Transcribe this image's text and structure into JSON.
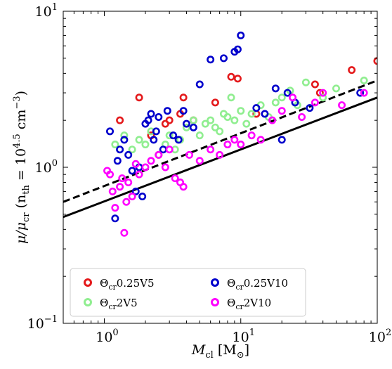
{
  "chart_data": {
    "type": "scatter",
    "title": "",
    "x_scale": "log",
    "y_scale": "log",
    "xlim": [
      0.5,
      100
    ],
    "ylim": [
      0.1,
      10
    ],
    "grid": false,
    "legend_position": "lower-left",
    "xlabel": {
      "main": "M",
      "sub": "cl",
      "tail": " [M",
      "tail_sub": "⊙",
      "close": "]"
    },
    "ylabel": {
      "text": "μ/μ",
      "sub": "cr",
      "paren": " (n",
      "sub2": "th",
      "eq": " = 10",
      "sup": "4.5",
      "unit": " cm",
      "unit_sup": "−3",
      "close": ")"
    },
    "x_ticks": [
      {
        "value": 1,
        "base": "10",
        "exp": "0"
      },
      {
        "value": 10,
        "base": "10",
        "exp": "1"
      },
      {
        "value": 100,
        "base": "10",
        "exp": "2"
      }
    ],
    "y_ticks": [
      {
        "value": 0.1,
        "base": "10",
        "exp": "−1"
      },
      {
        "value": 1,
        "base": "10",
        "exp": "0"
      },
      {
        "value": 10,
        "base": "10",
        "exp": "1"
      }
    ],
    "series": [
      {
        "name_main": "Θ",
        "name_sub": "cr",
        "name_tail": "0.25V5",
        "color": "#e41a1c",
        "points": [
          [
            1.3,
            2.0
          ],
          [
            1.8,
            2.8
          ],
          [
            2.2,
            1.6
          ],
          [
            2.5,
            1.2
          ],
          [
            2.8,
            1.9
          ],
          [
            3.0,
            2.0
          ],
          [
            3.6,
            2.2
          ],
          [
            3.8,
            2.8
          ],
          [
            4.5,
            2.0
          ],
          [
            6.5,
            2.6
          ],
          [
            8.5,
            3.8
          ],
          [
            9.5,
            3.7
          ],
          [
            13,
            2.2
          ],
          [
            35,
            3.4
          ],
          [
            38,
            3.0
          ],
          [
            65,
            4.2
          ],
          [
            100,
            4.8
          ]
        ]
      },
      {
        "name_main": "Θ",
        "name_sub": "cr",
        "name_tail": "2V5",
        "color": "#90ee90",
        "points": [
          [
            1.2,
            1.4
          ],
          [
            1.4,
            1.6
          ],
          [
            1.6,
            1.3
          ],
          [
            1.8,
            1.5
          ],
          [
            2.0,
            1.4
          ],
          [
            2.2,
            1.7
          ],
          [
            2.5,
            1.2
          ],
          [
            2.8,
            1.4
          ],
          [
            3.0,
            1.6
          ],
          [
            3.3,
            1.3
          ],
          [
            3.6,
            1.5
          ],
          [
            4.0,
            1.8
          ],
          [
            4.5,
            2.0
          ],
          [
            5.0,
            1.6
          ],
          [
            5.5,
            1.9
          ],
          [
            6.0,
            2.0
          ],
          [
            6.5,
            1.8
          ],
          [
            7.0,
            1.7
          ],
          [
            7.5,
            2.2
          ],
          [
            8.0,
            2.1
          ],
          [
            8.5,
            2.8
          ],
          [
            9.0,
            2.0
          ],
          [
            10,
            2.3
          ],
          [
            11,
            1.9
          ],
          [
            12,
            2.2
          ],
          [
            14,
            2.5
          ],
          [
            16,
            2.1
          ],
          [
            18,
            2.6
          ],
          [
            20,
            2.8
          ],
          [
            23,
            3.1
          ],
          [
            26,
            2.5
          ],
          [
            30,
            3.5
          ],
          [
            40,
            2.8
          ],
          [
            50,
            3.2
          ],
          [
            80,
            3.6
          ]
        ]
      },
      {
        "name_main": "Θ",
        "name_sub": "cr",
        "name_tail": "0.25V10",
        "color": "#0000cc",
        "points": [
          [
            1.1,
            1.7
          ],
          [
            1.2,
            0.47
          ],
          [
            1.25,
            1.1
          ],
          [
            1.3,
            1.3
          ],
          [
            1.4,
            1.5
          ],
          [
            1.5,
            1.2
          ],
          [
            1.6,
            0.95
          ],
          [
            1.7,
            0.7
          ],
          [
            1.8,
            1.0
          ],
          [
            1.9,
            0.65
          ],
          [
            2.0,
            1.9
          ],
          [
            2.1,
            2.0
          ],
          [
            2.2,
            2.2
          ],
          [
            2.3,
            1.5
          ],
          [
            2.4,
            1.7
          ],
          [
            2.5,
            2.1
          ],
          [
            2.7,
            1.3
          ],
          [
            2.9,
            2.3
          ],
          [
            3.2,
            1.6
          ],
          [
            3.5,
            1.5
          ],
          [
            3.8,
            2.3
          ],
          [
            4.0,
            1.9
          ],
          [
            4.5,
            1.8
          ],
          [
            5.0,
            3.4
          ],
          [
            6.0,
            4.9
          ],
          [
            7.5,
            5.0
          ],
          [
            9.0,
            5.5
          ],
          [
            9.5,
            5.7
          ],
          [
            10,
            7.0
          ],
          [
            13,
            2.4
          ],
          [
            15,
            2.2
          ],
          [
            18,
            3.2
          ],
          [
            20,
            1.5
          ],
          [
            22,
            3.0
          ],
          [
            25,
            2.6
          ],
          [
            32,
            2.4
          ],
          [
            75,
            3.0
          ]
        ]
      },
      {
        "name_main": "Θ",
        "name_sub": "cr",
        "name_tail": "2V10",
        "color": "#ff00ff",
        "points": [
          [
            1.05,
            0.95
          ],
          [
            1.1,
            0.9
          ],
          [
            1.15,
            0.7
          ],
          [
            1.2,
            0.55
          ],
          [
            1.3,
            0.75
          ],
          [
            1.35,
            0.85
          ],
          [
            1.4,
            0.38
          ],
          [
            1.45,
            0.6
          ],
          [
            1.5,
            0.8
          ],
          [
            1.6,
            0.65
          ],
          [
            1.7,
            1.05
          ],
          [
            1.8,
            0.9
          ],
          [
            2.0,
            1.0
          ],
          [
            2.2,
            1.1
          ],
          [
            2.5,
            1.2
          ],
          [
            2.8,
            1.0
          ],
          [
            3.0,
            1.3
          ],
          [
            3.3,
            0.85
          ],
          [
            3.6,
            0.8
          ],
          [
            3.8,
            0.75
          ],
          [
            4.2,
            1.2
          ],
          [
            5.0,
            1.1
          ],
          [
            6.0,
            1.3
          ],
          [
            7.0,
            1.2
          ],
          [
            8.0,
            1.4
          ],
          [
            9.0,
            1.5
          ],
          [
            10,
            1.4
          ],
          [
            12,
            1.6
          ],
          [
            14,
            1.5
          ],
          [
            17,
            2.0
          ],
          [
            20,
            2.3
          ],
          [
            24,
            2.8
          ],
          [
            28,
            2.1
          ],
          [
            35,
            2.6
          ],
          [
            40,
            3.0
          ],
          [
            55,
            2.5
          ],
          [
            80,
            3.0
          ]
        ]
      }
    ],
    "lines": [
      {
        "style": "solid",
        "color": "#000000",
        "x": [
          0.5,
          100
        ],
        "y": [
          0.48,
          2.8
        ]
      },
      {
        "style": "dashed",
        "color": "#000000",
        "x": [
          0.5,
          100
        ],
        "y": [
          0.6,
          3.6
        ]
      }
    ]
  }
}
